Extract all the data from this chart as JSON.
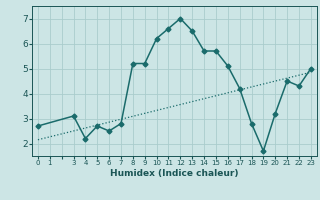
{
  "title": "",
  "xlabel": "Humidex (Indice chaleur)",
  "ylabel": "",
  "background_color": "#cce5e5",
  "line_color": "#1a6b6b",
  "grid_color": "#aacccc",
  "text_color": "#1a5555",
  "line1_x": [
    0,
    3,
    4,
    5,
    6,
    7,
    8,
    9,
    10,
    11,
    12,
    13,
    14,
    15,
    16,
    17,
    18,
    19,
    20,
    21,
    22,
    23
  ],
  "line1_y": [
    2.7,
    3.1,
    2.2,
    2.7,
    2.5,
    2.8,
    5.2,
    5.2,
    6.2,
    6.6,
    7.0,
    6.5,
    5.7,
    5.7,
    5.1,
    4.2,
    2.8,
    1.7,
    3.2,
    4.5,
    4.3,
    5.0
  ],
  "line2_x": [
    0,
    23
  ],
  "line2_y": [
    2.15,
    4.85
  ],
  "xlim": [
    -0.5,
    23.5
  ],
  "ylim": [
    1.5,
    7.5
  ],
  "yticks": [
    2,
    3,
    4,
    5,
    6,
    7
  ],
  "xtick_labels": [
    "0",
    "1",
    "",
    "3",
    "4",
    "5",
    "6",
    "7",
    "8",
    "9",
    "10",
    "11",
    "12",
    "13",
    "14",
    "15",
    "16",
    "17",
    "18",
    "19",
    "20",
    "21",
    "22",
    "23"
  ]
}
